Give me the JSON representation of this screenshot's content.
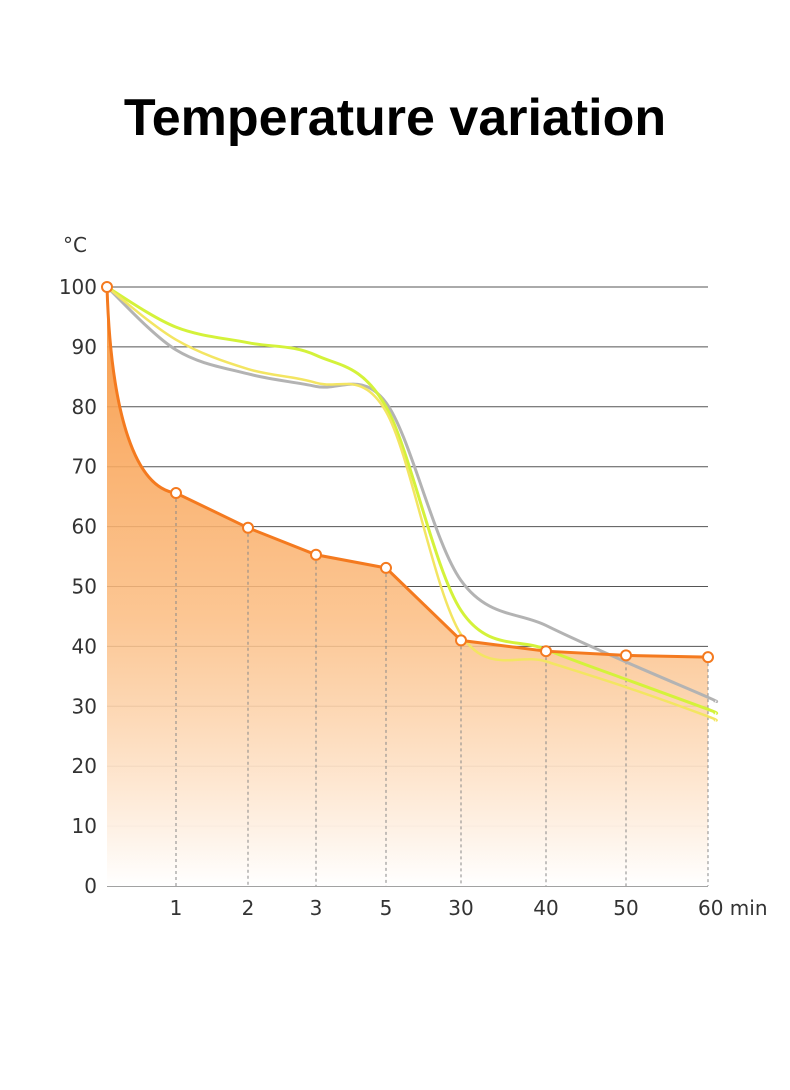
{
  "chart_data": {
    "type": "area",
    "title": "Temperature variation",
    "ylabel": "°C",
    "xlabel": "min",
    "ylim": [
      0,
      100
    ],
    "yticks": [
      0,
      10,
      20,
      30,
      40,
      50,
      60,
      70,
      80,
      90,
      100
    ],
    "categories": [
      "0",
      "1",
      "2",
      "3",
      "5",
      "30",
      "40",
      "50",
      "60"
    ],
    "xtick_labels": [
      "1",
      "2",
      "3",
      "5",
      "30",
      "40",
      "50",
      "60 min"
    ],
    "grid": true,
    "legend": "none",
    "series": [
      {
        "values": [
          100,
          65.6,
          59.8,
          55.3,
          53.1,
          41.0,
          39.2,
          38.5,
          38.2
        ],
        "color": "#f47a1f",
        "fill": true,
        "markers": true
      },
      {
        "values": [
          100,
          89.5,
          85.5,
          83.4,
          80.7,
          51.0,
          43.5,
          37.4,
          31.5
        ],
        "color": "#b3b3b3",
        "fill": false,
        "markers": false
      },
      {
        "values": [
          100,
          93.3,
          90.7,
          88.6,
          80.0,
          46.0,
          39.5,
          34.5,
          29.5
        ],
        "color": "#d4f23a",
        "fill": false,
        "markers": false
      },
      {
        "values": [
          100,
          91.2,
          86.3,
          84.0,
          79.2,
          42.0,
          37.5,
          33.2,
          28.3
        ],
        "color": "#f3e562",
        "fill": false,
        "markers": false
      }
    ]
  }
}
